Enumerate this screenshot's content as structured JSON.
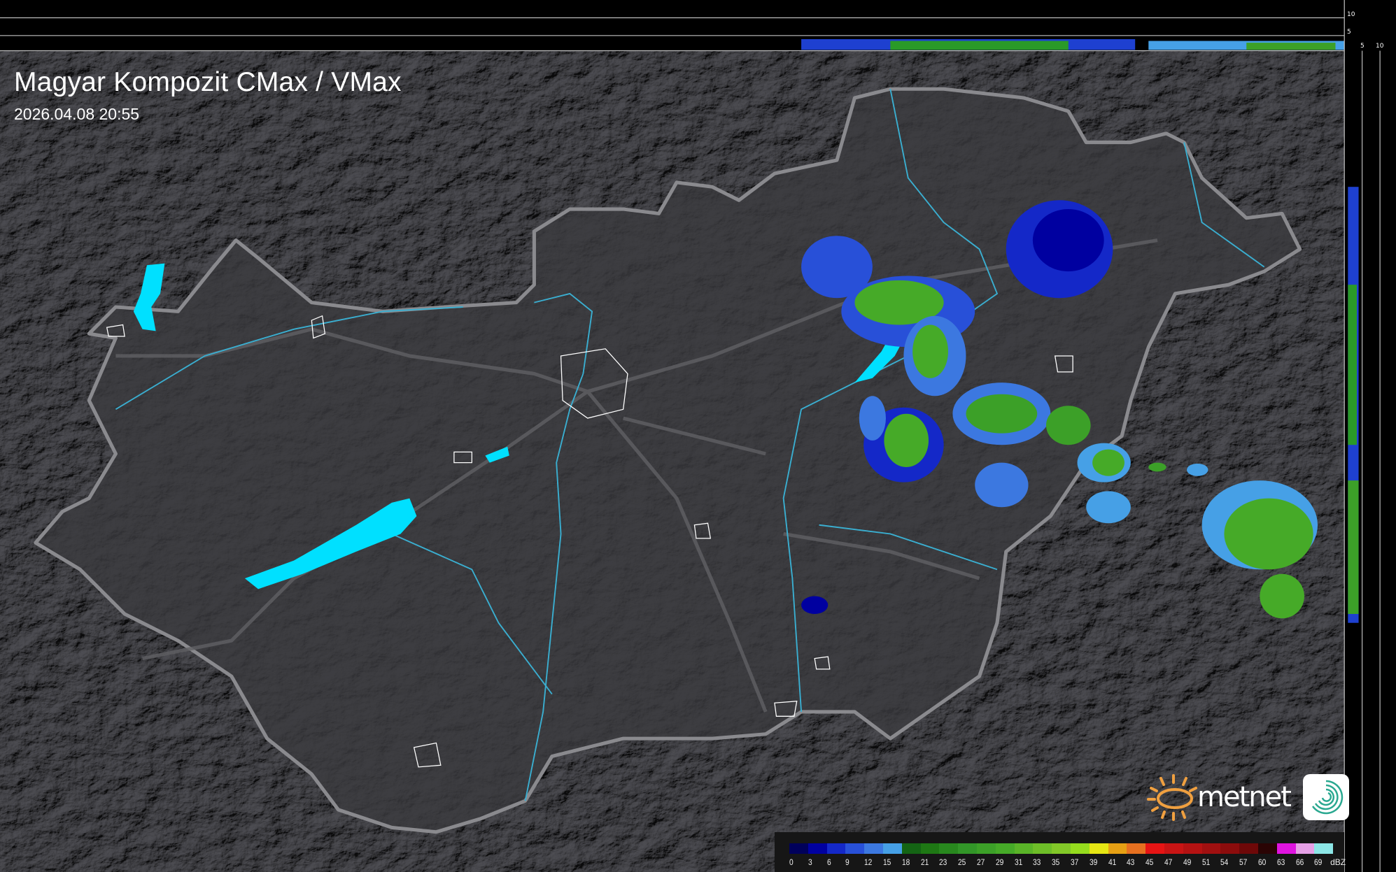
{
  "header": {
    "title": "Magyar Kompozit CMax / VMax",
    "timestamp": "2026.04.08 20:55"
  },
  "side_axes": {
    "top_profile_ticks": [
      "10",
      "5"
    ],
    "right_profile_ticks": [
      "5",
      "10"
    ]
  },
  "legend": {
    "unit": "dBZ",
    "labels": [
      "0",
      "3",
      "6",
      "9",
      "12",
      "15",
      "18",
      "21",
      "23",
      "25",
      "27",
      "29",
      "31",
      "33",
      "35",
      "37",
      "39",
      "41",
      "43",
      "45",
      "47",
      "49",
      "51",
      "54",
      "57",
      "60",
      "63",
      "66",
      "69"
    ],
    "colors": [
      "#00005a",
      "#0000a0",
      "#1428c8",
      "#2850d8",
      "#3c78e0",
      "#46a0e6",
      "#146414",
      "#1e7814",
      "#28881e",
      "#329628",
      "#3ca028",
      "#46aa28",
      "#5ab428",
      "#6ebe28",
      "#82c828",
      "#96dc1e",
      "#e6e614",
      "#e6a014",
      "#e67020",
      "#e61414",
      "#c81414",
      "#b41212",
      "#a01010",
      "#8c0c0c",
      "#6e0808",
      "#2a0404",
      "#e014e0",
      "#e6a0e6",
      "#8ce6e6"
    ]
  },
  "logo": {
    "text": "metnet",
    "sun_color": "#f0a040",
    "icon_color": "#2aa890"
  },
  "map_colors": {
    "background": "#2c2c2e",
    "country": "#3a3a3e",
    "border": "#8a8a8e",
    "water": "#00e0ff",
    "river": "#3aaed0"
  }
}
